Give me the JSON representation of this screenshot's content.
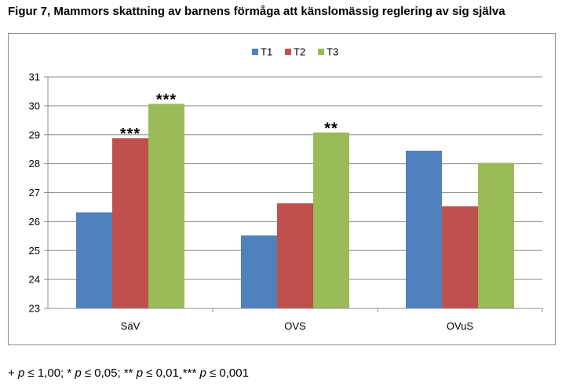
{
  "figure": {
    "title": "Figur 7, Mammors skattning av barnens förmåga att känslomässig reglering av sig själva"
  },
  "footnote": {
    "part1": "+ ",
    "p1": "p",
    "part2": " ≤ 1,00; * ",
    "p2": "p",
    "part3": " ≤ 0,05; ** ",
    "p3": "p",
    "part4": " ≤ 0,01¸*** ",
    "p4": "p",
    "part5": " ≤ 0,001"
  },
  "chart_data": {
    "type": "bar",
    "title": "",
    "xlabel": "",
    "ylabel": "",
    "categories": [
      "SäV",
      "OVS",
      "OVuS"
    ],
    "series": [
      {
        "name": "T1",
        "color": "#4f81bd",
        "values": [
          26.32,
          25.52,
          28.45
        ]
      },
      {
        "name": "T2",
        "color": "#c0504d",
        "values": [
          28.88,
          26.63,
          26.53
        ]
      },
      {
        "name": "T3",
        "color": "#9bbb59",
        "values": [
          30.07,
          29.08,
          28.03
        ]
      }
    ],
    "significance": [
      {
        "category": 0,
        "series": 1,
        "label": "***"
      },
      {
        "category": 0,
        "series": 2,
        "label": "***"
      },
      {
        "category": 1,
        "series": 2,
        "label": "**"
      }
    ],
    "ylim": [
      23,
      31
    ],
    "yticks": [
      23,
      24,
      25,
      26,
      27,
      28,
      29,
      30,
      31
    ],
    "grid": true,
    "legend": "top-center"
  }
}
